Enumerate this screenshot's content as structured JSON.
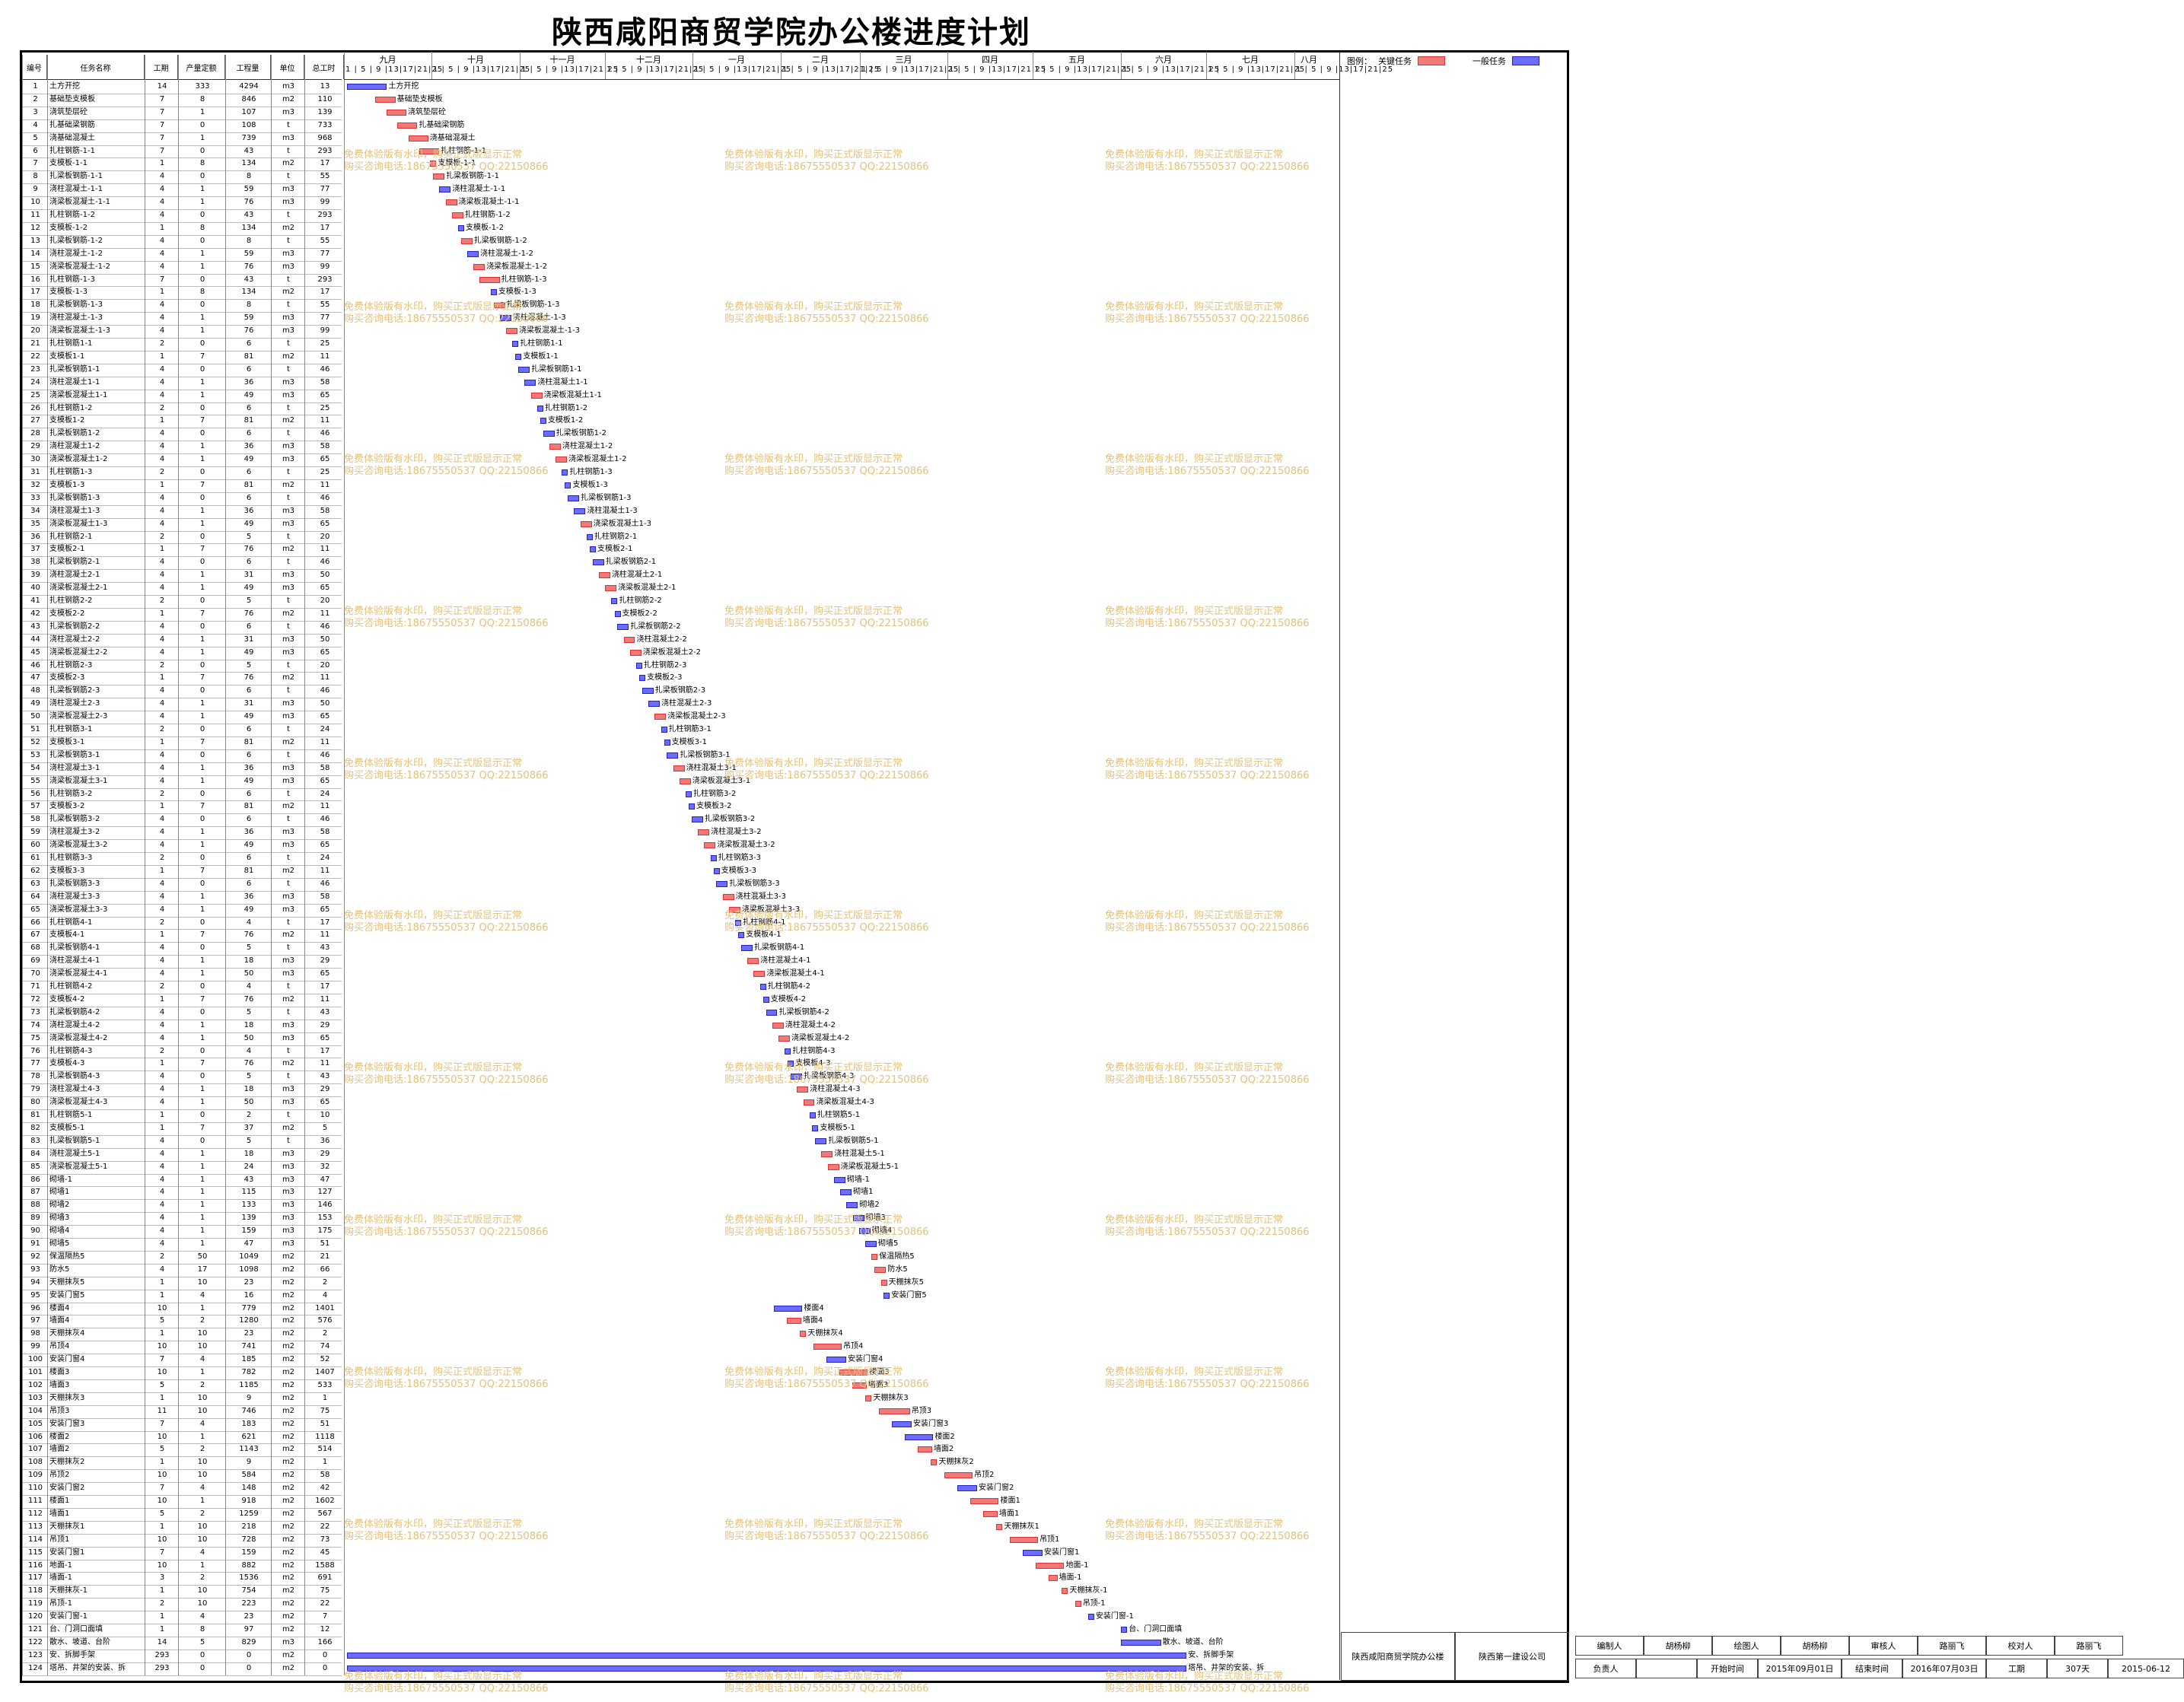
{
  "title": "陕西咸阳商贸学院办公楼进度计划",
  "columns": [
    "编号",
    "任务名称",
    "工期",
    "产量定额",
    "工程量",
    "单位",
    "总工时"
  ],
  "months": [
    "九月",
    "十月",
    "十一月",
    "十二月",
    "一月",
    "二月",
    "三月",
    "四月",
    "五月",
    "六月",
    "七月",
    "八月"
  ],
  "day_ticks": "1 | 5 | 9 |13|17|21|25",
  "legend": {
    "label": "图例：",
    "critical": "关键任务",
    "normal": "一般任务"
  },
  "watermark": {
    "line1": "免费体验版有水印，购买正式版显示正常",
    "line2": "购买咨询电话:18675550537 QQ:22150866"
  },
  "colors": {
    "critical": "#f07a7a",
    "normal": "#6c6cff"
  },
  "tasks": [
    [
      "1",
      "土方开挖",
      "14",
      "333",
      "4294",
      "m3",
      "13"
    ],
    [
      "2",
      "基础垫支模板",
      "7",
      "8",
      "846",
      "m2",
      "110"
    ],
    [
      "3",
      "浇筑垫层砼",
      "7",
      "1",
      "107",
      "m3",
      "139"
    ],
    [
      "4",
      "扎基础梁钢筋",
      "7",
      "0",
      "108",
      "t",
      "733"
    ],
    [
      "5",
      "浇基础混凝土",
      "7",
      "1",
      "739",
      "m3",
      "968"
    ],
    [
      "6",
      "扎柱钢筋-1-1",
      "7",
      "0",
      "43",
      "t",
      "293"
    ],
    [
      "7",
      "支模板-1-1",
      "1",
      "8",
      "134",
      "m2",
      "17"
    ],
    [
      "8",
      "扎梁板钢筋-1-1",
      "4",
      "0",
      "8",
      "t",
      "55"
    ],
    [
      "9",
      "浇柱混凝土-1-1",
      "4",
      "1",
      "59",
      "m3",
      "77"
    ],
    [
      "10",
      "浇梁板混凝土-1-1",
      "4",
      "1",
      "76",
      "m3",
      "99"
    ],
    [
      "11",
      "扎柱钢筋-1-2",
      "4",
      "0",
      "43",
      "t",
      "293"
    ],
    [
      "12",
      "支模板-1-2",
      "1",
      "8",
      "134",
      "m2",
      "17"
    ],
    [
      "13",
      "扎梁板钢筋-1-2",
      "4",
      "0",
      "8",
      "t",
      "55"
    ],
    [
      "14",
      "浇柱混凝土-1-2",
      "4",
      "1",
      "59",
      "m3",
      "77"
    ],
    [
      "15",
      "浇梁板混凝土-1-2",
      "4",
      "1",
      "76",
      "m3",
      "99"
    ],
    [
      "16",
      "扎柱钢筋-1-3",
      "7",
      "0",
      "43",
      "t",
      "293"
    ],
    [
      "17",
      "支模板-1-3",
      "1",
      "8",
      "134",
      "m2",
      "17"
    ],
    [
      "18",
      "扎梁板钢筋-1-3",
      "4",
      "0",
      "8",
      "t",
      "55"
    ],
    [
      "19",
      "浇柱混凝土-1-3",
      "4",
      "1",
      "59",
      "m3",
      "77"
    ],
    [
      "20",
      "浇梁板混凝土-1-3",
      "4",
      "1",
      "76",
      "m3",
      "99"
    ],
    [
      "21",
      "扎柱钢筋1-1",
      "2",
      "0",
      "6",
      "t",
      "25"
    ],
    [
      "22",
      "支模板1-1",
      "1",
      "7",
      "81",
      "m2",
      "11"
    ],
    [
      "23",
      "扎梁板钢筋1-1",
      "4",
      "0",
      "6",
      "t",
      "46"
    ],
    [
      "24",
      "浇柱混凝土1-1",
      "4",
      "1",
      "36",
      "m3",
      "58"
    ],
    [
      "25",
      "浇梁板混凝土1-1",
      "4",
      "1",
      "49",
      "m3",
      "65"
    ],
    [
      "26",
      "扎柱钢筋1-2",
      "2",
      "0",
      "6",
      "t",
      "25"
    ],
    [
      "27",
      "支模板1-2",
      "1",
      "7",
      "81",
      "m2",
      "11"
    ],
    [
      "28",
      "扎梁板钢筋1-2",
      "4",
      "0",
      "6",
      "t",
      "46"
    ],
    [
      "29",
      "浇柱混凝土1-2",
      "4",
      "1",
      "36",
      "m3",
      "58"
    ],
    [
      "30",
      "浇梁板混凝土1-2",
      "4",
      "1",
      "49",
      "m3",
      "65"
    ],
    [
      "31",
      "扎柱钢筋1-3",
      "2",
      "0",
      "6",
      "t",
      "25"
    ],
    [
      "32",
      "支模板1-3",
      "1",
      "7",
      "81",
      "m2",
      "11"
    ],
    [
      "33",
      "扎梁板钢筋1-3",
      "4",
      "0",
      "6",
      "t",
      "46"
    ],
    [
      "34",
      "浇柱混凝土1-3",
      "4",
      "1",
      "36",
      "m3",
      "58"
    ],
    [
      "35",
      "浇梁板混凝土1-3",
      "4",
      "1",
      "49",
      "m3",
      "65"
    ],
    [
      "36",
      "扎柱钢筋2-1",
      "2",
      "0",
      "5",
      "t",
      "20"
    ],
    [
      "37",
      "支模板2-1",
      "1",
      "7",
      "76",
      "m2",
      "11"
    ],
    [
      "38",
      "扎梁板钢筋2-1",
      "4",
      "0",
      "6",
      "t",
      "46"
    ],
    [
      "39",
      "浇柱混凝土2-1",
      "4",
      "1",
      "31",
      "m3",
      "50"
    ],
    [
      "40",
      "浇梁板混凝土2-1",
      "4",
      "1",
      "49",
      "m3",
      "65"
    ],
    [
      "41",
      "扎柱钢筋2-2",
      "2",
      "0",
      "5",
      "t",
      "20"
    ],
    [
      "42",
      "支模板2-2",
      "1",
      "7",
      "76",
      "m2",
      "11"
    ],
    [
      "43",
      "扎梁板钢筋2-2",
      "4",
      "0",
      "6",
      "t",
      "46"
    ],
    [
      "44",
      "浇柱混凝土2-2",
      "4",
      "1",
      "31",
      "m3",
      "50"
    ],
    [
      "45",
      "浇梁板混凝土2-2",
      "4",
      "1",
      "49",
      "m3",
      "65"
    ],
    [
      "46",
      "扎柱钢筋2-3",
      "2",
      "0",
      "5",
      "t",
      "20"
    ],
    [
      "47",
      "支模板2-3",
      "1",
      "7",
      "76",
      "m2",
      "11"
    ],
    [
      "48",
      "扎梁板钢筋2-3",
      "4",
      "0",
      "6",
      "t",
      "46"
    ],
    [
      "49",
      "浇柱混凝土2-3",
      "4",
      "1",
      "31",
      "m3",
      "50"
    ],
    [
      "50",
      "浇梁板混凝土2-3",
      "4",
      "1",
      "49",
      "m3",
      "65"
    ],
    [
      "51",
      "扎柱钢筋3-1",
      "2",
      "0",
      "6",
      "t",
      "24"
    ],
    [
      "52",
      "支模板3-1",
      "1",
      "7",
      "81",
      "m2",
      "11"
    ],
    [
      "53",
      "扎梁板钢筋3-1",
      "4",
      "0",
      "6",
      "t",
      "46"
    ],
    [
      "54",
      "浇柱混凝土3-1",
      "4",
      "1",
      "36",
      "m3",
      "58"
    ],
    [
      "55",
      "浇梁板混凝土3-1",
      "4",
      "1",
      "49",
      "m3",
      "65"
    ],
    [
      "56",
      "扎柱钢筋3-2",
      "2",
      "0",
      "6",
      "t",
      "24"
    ],
    [
      "57",
      "支模板3-2",
      "1",
      "7",
      "81",
      "m2",
      "11"
    ],
    [
      "58",
      "扎梁板钢筋3-2",
      "4",
      "0",
      "6",
      "t",
      "46"
    ],
    [
      "59",
      "浇柱混凝土3-2",
      "4",
      "1",
      "36",
      "m3",
      "58"
    ],
    [
      "60",
      "浇梁板混凝土3-2",
      "4",
      "1",
      "49",
      "m3",
      "65"
    ],
    [
      "61",
      "扎柱钢筋3-3",
      "2",
      "0",
      "6",
      "t",
      "24"
    ],
    [
      "62",
      "支模板3-3",
      "1",
      "7",
      "81",
      "m2",
      "11"
    ],
    [
      "63",
      "扎梁板钢筋3-3",
      "4",
      "0",
      "6",
      "t",
      "46"
    ],
    [
      "64",
      "浇柱混凝土3-3",
      "4",
      "1",
      "36",
      "m3",
      "58"
    ],
    [
      "65",
      "浇梁板混凝土3-3",
      "4",
      "1",
      "49",
      "m3",
      "65"
    ],
    [
      "66",
      "扎柱钢筋4-1",
      "2",
      "0",
      "4",
      "t",
      "17"
    ],
    [
      "67",
      "支模板4-1",
      "1",
      "7",
      "76",
      "m2",
      "11"
    ],
    [
      "68",
      "扎梁板钢筋4-1",
      "4",
      "0",
      "5",
      "t",
      "43"
    ],
    [
      "69",
      "浇柱混凝土4-1",
      "4",
      "1",
      "18",
      "m3",
      "29"
    ],
    [
      "70",
      "浇梁板混凝土4-1",
      "4",
      "1",
      "50",
      "m3",
      "65"
    ],
    [
      "71",
      "扎柱钢筋4-2",
      "2",
      "0",
      "4",
      "t",
      "17"
    ],
    [
      "72",
      "支模板4-2",
      "1",
      "7",
      "76",
      "m2",
      "11"
    ],
    [
      "73",
      "扎梁板钢筋4-2",
      "4",
      "0",
      "5",
      "t",
      "43"
    ],
    [
      "74",
      "浇柱混凝土4-2",
      "4",
      "1",
      "18",
      "m3",
      "29"
    ],
    [
      "75",
      "浇梁板混凝土4-2",
      "4",
      "1",
      "50",
      "m3",
      "65"
    ],
    [
      "76",
      "扎柱钢筋4-3",
      "2",
      "0",
      "4",
      "t",
      "17"
    ],
    [
      "77",
      "支模板4-3",
      "1",
      "7",
      "76",
      "m2",
      "11"
    ],
    [
      "78",
      "扎梁板钢筋4-3",
      "4",
      "0",
      "5",
      "t",
      "43"
    ],
    [
      "79",
      "浇柱混凝土4-3",
      "4",
      "1",
      "18",
      "m3",
      "29"
    ],
    [
      "80",
      "浇梁板混凝土4-3",
      "4",
      "1",
      "50",
      "m3",
      "65"
    ],
    [
      "81",
      "扎柱钢筋5-1",
      "1",
      "0",
      "2",
      "t",
      "10"
    ],
    [
      "82",
      "支模板5-1",
      "1",
      "7",
      "37",
      "m2",
      "5"
    ],
    [
      "83",
      "扎梁板钢筋5-1",
      "4",
      "0",
      "5",
      "t",
      "36"
    ],
    [
      "84",
      "浇柱混凝土5-1",
      "4",
      "1",
      "18",
      "m3",
      "29"
    ],
    [
      "85",
      "浇梁板混凝土5-1",
      "4",
      "1",
      "24",
      "m3",
      "32"
    ],
    [
      "86",
      "砌墙-1",
      "4",
      "1",
      "43",
      "m3",
      "47"
    ],
    [
      "87",
      "砌墙1",
      "4",
      "1",
      "115",
      "m3",
      "127"
    ],
    [
      "88",
      "砌墙2",
      "4",
      "1",
      "133",
      "m3",
      "146"
    ],
    [
      "89",
      "砌墙3",
      "4",
      "1",
      "139",
      "m3",
      "153"
    ],
    [
      "90",
      "砌墙4",
      "4",
      "1",
      "159",
      "m3",
      "175"
    ],
    [
      "91",
      "砌墙5",
      "4",
      "1",
      "47",
      "m3",
      "51"
    ],
    [
      "92",
      "保温隔热5",
      "2",
      "50",
      "1049",
      "m2",
      "21"
    ],
    [
      "93",
      "防水5",
      "4",
      "17",
      "1098",
      "m2",
      "66"
    ],
    [
      "94",
      "天棚抹灰5",
      "1",
      "10",
      "23",
      "m2",
      "2"
    ],
    [
      "95",
      "安装门窗5",
      "1",
      "4",
      "16",
      "m2",
      "4"
    ],
    [
      "96",
      "楼面4",
      "10",
      "1",
      "779",
      "m2",
      "1401"
    ],
    [
      "97",
      "墙面4",
      "5",
      "2",
      "1280",
      "m2",
      "576"
    ],
    [
      "98",
      "天棚抹灰4",
      "1",
      "10",
      "23",
      "m2",
      "2"
    ],
    [
      "99",
      "吊顶4",
      "10",
      "10",
      "741",
      "m2",
      "74"
    ],
    [
      "100",
      "安装门窗4",
      "7",
      "4",
      "185",
      "m2",
      "52"
    ],
    [
      "101",
      "楼面3",
      "10",
      "1",
      "782",
      "m2",
      "1407"
    ],
    [
      "102",
      "墙面3",
      "5",
      "2",
      "1185",
      "m2",
      "533"
    ],
    [
      "103",
      "天棚抹灰3",
      "1",
      "10",
      "9",
      "m2",
      "1"
    ],
    [
      "104",
      "吊顶3",
      "11",
      "10",
      "746",
      "m2",
      "75"
    ],
    [
      "105",
      "安装门窗3",
      "7",
      "4",
      "183",
      "m2",
      "51"
    ],
    [
      "106",
      "楼面2",
      "10",
      "1",
      "621",
      "m2",
      "1118"
    ],
    [
      "107",
      "墙面2",
      "5",
      "2",
      "1143",
      "m2",
      "514"
    ],
    [
      "108",
      "天棚抹灰2",
      "1",
      "10",
      "9",
      "m2",
      "1"
    ],
    [
      "109",
      "吊顶2",
      "10",
      "10",
      "584",
      "m2",
      "58"
    ],
    [
      "110",
      "安装门窗2",
      "7",
      "4",
      "148",
      "m2",
      "42"
    ],
    [
      "111",
      "楼面1",
      "10",
      "1",
      "918",
      "m2",
      "1602"
    ],
    [
      "112",
      "墙面1",
      "5",
      "2",
      "1259",
      "m2",
      "567"
    ],
    [
      "113",
      "天棚抹灰1",
      "1",
      "10",
      "218",
      "m2",
      "22"
    ],
    [
      "114",
      "吊顶1",
      "10",
      "10",
      "728",
      "m2",
      "73"
    ],
    [
      "115",
      "安装门窗1",
      "7",
      "4",
      "159",
      "m2",
      "45"
    ],
    [
      "116",
      "地面-1",
      "10",
      "1",
      "882",
      "m2",
      "1588"
    ],
    [
      "117",
      "墙面-1",
      "3",
      "2",
      "1536",
      "m2",
      "691"
    ],
    [
      "118",
      "天棚抹灰-1",
      "1",
      "10",
      "754",
      "m2",
      "75"
    ],
    [
      "119",
      "吊顶-1",
      "2",
      "10",
      "223",
      "m2",
      "22"
    ],
    [
      "120",
      "安装门窗-1",
      "1",
      "4",
      "23",
      "m2",
      "7"
    ],
    [
      "121",
      "台、门洞口面填",
      "1",
      "8",
      "97",
      "m2",
      "12"
    ],
    [
      "122",
      "散水、坡道、台阶",
      "14",
      "5",
      "829",
      "m3",
      "166"
    ],
    [
      "123",
      "安、拆脚手架",
      "293",
      "0",
      "0",
      "m2",
      "0"
    ],
    [
      "124",
      "塔吊、井架的安装、拆",
      "293",
      "0",
      "0",
      "m2",
      "0"
    ]
  ],
  "footer": {
    "project": "陕西咸阳商贸学院办公楼",
    "company": "陕西第一建设公司",
    "row1": [
      "编制人",
      "胡杨柳",
      "绘图人",
      "胡杨柳",
      "审核人",
      "路丽飞",
      "校对人",
      "路丽飞"
    ],
    "row2": [
      "负责人",
      "",
      "开始时间",
      "2015年09月01日",
      "结束时间",
      "2016年07月03日",
      "工期",
      "307天",
      "2015-06-12"
    ]
  }
}
